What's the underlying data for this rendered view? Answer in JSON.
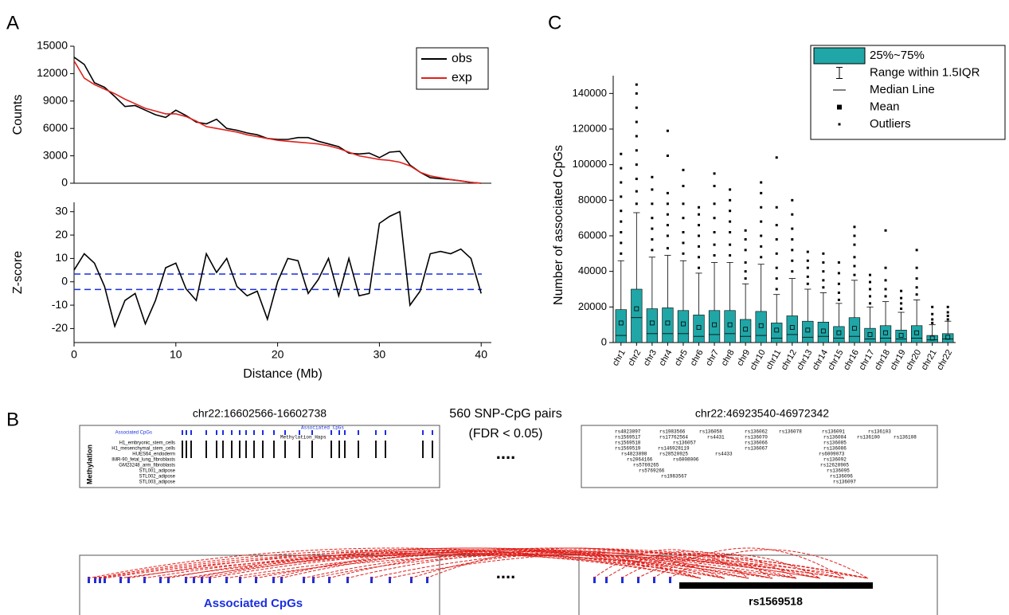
{
  "panel_labels": [
    "A",
    "B",
    "C"
  ],
  "chart_data": [
    {
      "type": "line",
      "ylabel": "Counts",
      "x": [
        0,
        1,
        2,
        3,
        4,
        5,
        6,
        7,
        8,
        9,
        10,
        11,
        12,
        13,
        14,
        15,
        16,
        17,
        18,
        19,
        20,
        21,
        22,
        23,
        24,
        25,
        26,
        27,
        28,
        29,
        30,
        31,
        32,
        33,
        34,
        35,
        36,
        37,
        38,
        39,
        40
      ],
      "series": [
        {
          "name": "obs",
          "color": "#000000",
          "values": [
            13800,
            13000,
            11000,
            10500,
            9500,
            8400,
            8500,
            8000,
            7500,
            7200,
            8000,
            7400,
            6700,
            6500,
            7000,
            6000,
            5800,
            5500,
            5300,
            4900,
            4800,
            4800,
            5000,
            5000,
            4600,
            4300,
            4000,
            3300,
            3200,
            3300,
            2800,
            3400,
            3500,
            2000,
            1200,
            600,
            500,
            400,
            250,
            100,
            0
          ]
        },
        {
          "name": "exp",
          "color": "#e0201b",
          "values": [
            13400,
            11500,
            10800,
            10300,
            9800,
            9200,
            8700,
            8200,
            7900,
            7600,
            7600,
            7300,
            6800,
            6200,
            6000,
            5800,
            5600,
            5300,
            5100,
            4900,
            4700,
            4600,
            4500,
            4400,
            4300,
            4100,
            3800,
            3400,
            3000,
            2800,
            2600,
            2500,
            2300,
            1900,
            1200,
            800,
            600,
            400,
            250,
            100,
            0
          ]
        }
      ],
      "xlim": [
        0,
        41
      ],
      "ylim": [
        0,
        15000
      ],
      "yticks": [
        0,
        3000,
        6000,
        9000,
        12000,
        15000
      ],
      "legend": "upper right"
    },
    {
      "type": "line",
      "ylabel": "Z-score",
      "xlabel": "Distance (Mb)",
      "x": [
        0,
        1,
        2,
        3,
        4,
        5,
        6,
        7,
        8,
        9,
        10,
        11,
        12,
        13,
        14,
        15,
        16,
        17,
        18,
        19,
        20,
        21,
        22,
        23,
        24,
        25,
        26,
        27,
        28,
        29,
        30,
        31,
        32,
        33,
        34,
        35,
        36,
        37,
        38,
        39,
        40
      ],
      "series": [
        {
          "name": "Z-score",
          "color": "#000000",
          "values": [
            5,
            12,
            8,
            -2,
            -19,
            -8,
            -5,
            -18,
            -8,
            6,
            8,
            -3,
            -8,
            12,
            4,
            10,
            -2,
            -6,
            -4,
            -16,
            0,
            10,
            9,
            -5,
            1,
            10,
            -6,
            10,
            -6,
            -5,
            25,
            28,
            30,
            -10,
            -4,
            12,
            13,
            12,
            14,
            10,
            -5
          ]
        }
      ],
      "reference_lines": [
        3.3,
        -3.3
      ],
      "reference_color": "#1a2fe0",
      "xlim": [
        0,
        41
      ],
      "xticks": [
        0,
        10,
        20,
        30,
        40
      ],
      "ylim": [
        -26,
        34
      ],
      "yticks": [
        -20,
        -10,
        0,
        10,
        20,
        30
      ]
    },
    {
      "type": "box",
      "ylabel": "Number of associated CpGs",
      "color": "#20a6a6",
      "categories": [
        "chr1",
        "chr2",
        "chr3",
        "chr4",
        "chr5",
        "chr6",
        "chr7",
        "chr8",
        "chr9",
        "chr10",
        "chr11",
        "chr12",
        "chr13",
        "chr14",
        "chr15",
        "chr16",
        "chr17",
        "chr18",
        "chr19",
        "chr20",
        "chr21",
        "chr22"
      ],
      "boxes": [
        {
          "q1": 0,
          "median": 4000,
          "q3": 18500,
          "mean": 11000,
          "whisker_high": 46000,
          "outliers": [
            50000,
            56000,
            62000,
            68000,
            74000,
            82000,
            90000,
            98000,
            106000
          ]
        },
        {
          "q1": 0,
          "median": 14000,
          "q3": 30000,
          "mean": 19000,
          "whisker_high": 73000,
          "outliers": [
            78000,
            85000,
            92000,
            100000,
            108000,
            116000,
            124000,
            132000,
            140000,
            145000
          ]
        },
        {
          "q1": 0,
          "median": 5000,
          "q3": 19000,
          "mean": 11000,
          "whisker_high": 48000,
          "outliers": [
            52000,
            58000,
            64000,
            70000,
            78000,
            86000,
            93000
          ]
        },
        {
          "q1": 0,
          "median": 5000,
          "q3": 19500,
          "mean": 11000,
          "whisker_high": 49000,
          "outliers": [
            53000,
            60000,
            66000,
            72000,
            78000,
            84000,
            105000,
            119000
          ]
        },
        {
          "q1": 0,
          "median": 5000,
          "q3": 18000,
          "mean": 10500,
          "whisker_high": 46000,
          "outliers": [
            50000,
            56000,
            62000,
            70000,
            78000,
            88000,
            97000
          ]
        },
        {
          "q1": 0,
          "median": 3500,
          "q3": 15500,
          "mean": 8500,
          "whisker_high": 39000,
          "outliers": [
            42000,
            48000,
            54000,
            60000,
            66000,
            72000,
            76000
          ]
        },
        {
          "q1": 0,
          "median": 4500,
          "q3": 18000,
          "mean": 10000,
          "whisker_high": 45000,
          "outliers": [
            49000,
            55000,
            62000,
            70000,
            78000,
            88000,
            95000
          ]
        },
        {
          "q1": 0,
          "median": 5000,
          "q3": 18000,
          "mean": 10000,
          "whisker_high": 45000,
          "outliers": [
            49000,
            55000,
            62000,
            68000,
            74000,
            80000,
            86000
          ]
        },
        {
          "q1": 0,
          "median": 3500,
          "q3": 13000,
          "mean": 7500,
          "whisker_high": 33000,
          "outliers": [
            36000,
            40000,
            45000,
            52000,
            58000,
            63000
          ]
        },
        {
          "q1": 0,
          "median": 4000,
          "q3": 17500,
          "mean": 9500,
          "whisker_high": 44000,
          "outliers": [
            48000,
            54000,
            60000,
            68000,
            76000,
            84000,
            90000
          ]
        },
        {
          "q1": 0,
          "median": 2500,
          "q3": 11000,
          "mean": 7000,
          "whisker_high": 27000,
          "outliers": [
            30000,
            36000,
            42000,
            50000,
            58000,
            66000,
            76000,
            104000
          ]
        },
        {
          "q1": 0,
          "median": 4500,
          "q3": 15000,
          "mean": 8500,
          "whisker_high": 36000,
          "outliers": [
            40000,
            46000,
            52000,
            58000,
            64000,
            72000,
            80000
          ]
        },
        {
          "q1": 0,
          "median": 3000,
          "q3": 12000,
          "mean": 7000,
          "whisker_high": 30000,
          "outliers": [
            33000,
            37000,
            42000,
            46000,
            51000
          ]
        },
        {
          "q1": 0,
          "median": 3500,
          "q3": 11500,
          "mean": 6500,
          "whisker_high": 28000,
          "outliers": [
            31000,
            35000,
            40000,
            45000,
            50000
          ]
        },
        {
          "q1": 0,
          "median": 2500,
          "q3": 9000,
          "mean": 5500,
          "whisker_high": 22000,
          "outliers": [
            24000,
            28000,
            33000,
            39000,
            45000
          ]
        },
        {
          "q1": 0,
          "median": 3500,
          "q3": 14000,
          "mean": 8000,
          "whisker_high": 35000,
          "outliers": [
            38000,
            43000,
            48000,
            55000,
            60000,
            65000
          ]
        },
        {
          "q1": 0,
          "median": 2000,
          "q3": 8000,
          "mean": 4500,
          "whisker_high": 20000,
          "outliers": [
            22000,
            26000,
            30000,
            34000,
            38000
          ]
        },
        {
          "q1": 0,
          "median": 2500,
          "q3": 9500,
          "mean": 5500,
          "whisker_high": 23000,
          "outliers": [
            26000,
            30000,
            35000,
            42000,
            63000
          ]
        },
        {
          "q1": 0,
          "median": 2000,
          "q3": 7000,
          "mean": 4000,
          "whisker_high": 17000,
          "outliers": [
            19000,
            22000,
            25000,
            29000
          ]
        },
        {
          "q1": 0,
          "median": 2500,
          "q3": 9500,
          "mean": 5500,
          "whisker_high": 24000,
          "outliers": [
            27000,
            31000,
            36000,
            42000,
            52000
          ]
        },
        {
          "q1": 0,
          "median": 1500,
          "q3": 4000,
          "mean": 2500,
          "whisker_high": 10000,
          "outliers": [
            11000,
            13000,
            16000,
            20000
          ]
        },
        {
          "q1": 0,
          "median": 2000,
          "q3": 5000,
          "mean": 3000,
          "whisker_high": 12000,
          "outliers": [
            13000,
            15000,
            17000,
            20000
          ]
        }
      ],
      "ylim": [
        0,
        150000
      ],
      "yticks": [
        0,
        20000,
        40000,
        60000,
        80000,
        100000,
        120000,
        140000
      ],
      "legend": [
        "25%~75%",
        "Range within 1.5IQR",
        "Median Line",
        "Mean",
        "Outliers"
      ]
    }
  ],
  "panel_b": {
    "left_region": "chr22:16602566-16602738",
    "right_region": "chr22:46923540-46972342",
    "summary": "560 SNP-CpG pairs",
    "fdr": "(FDR < 0.05)",
    "ellipsis": "....",
    "left_track_title": "Associated CpGs",
    "haps_title": "Associated CpGs",
    "haps_subtitle": "Methylation_Haps",
    "methylation_label": "Methylation",
    "tracks": [
      "H1_embryonic_stem_cells",
      "H1_mesenchymal_stem_cells",
      "HUES64_endoderm",
      "IMR-90_fetal_lung_fibroblasts",
      "GM23248_arm_fibroblasts",
      "STL001_adipose",
      "STL002_adipose",
      "STL003_adipose"
    ],
    "snps": [
      "rs4823897",
      "rs1983566",
      "rs136058",
      "rs136062",
      "rs136078",
      "rs136091",
      "rs136103",
      "rs1569517",
      "rs17762564",
      "rs4431",
      "rs136070",
      "rs136084",
      "rs136100",
      "rs136108",
      "rs1569518",
      "rs136057",
      "rs136066",
      "rs136085",
      "rs1569519",
      "rs146928119",
      "rs136067",
      "rs136086",
      "rs4823898",
      "rs2064166",
      "rs28520925",
      "rs4433",
      "rs6009073",
      "rs5769265",
      "rs6008006",
      "rs136092",
      "rs5769266",
      "rs12628905",
      "rs1983567",
      "rs136095",
      "rs136096",
      "rs136097"
    ],
    "bottom_ellipsis": "....",
    "bottom_cpg_label": "Associated CpGs",
    "bottom_snp_label": "rs1569518"
  }
}
